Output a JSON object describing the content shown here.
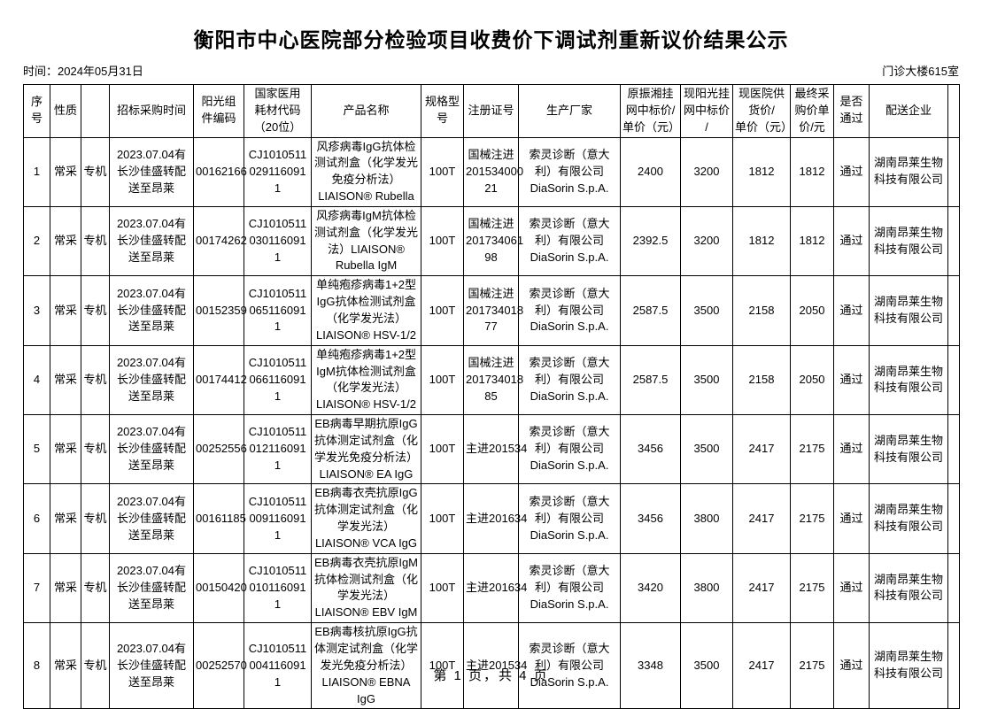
{
  "page": {
    "title": "衡阳市中心医院部分检验项目收费价下调试剂重新议价结果公示",
    "date_label": "时间：2024年05月31日",
    "room_label": "门诊大楼615室",
    "footer": "第 1 页，共 4 页"
  },
  "table": {
    "headers": [
      "序号",
      "性质",
      "",
      "招标采购时间",
      "阳光组\n件编码",
      "国家医用\n耗材代码\n（20位）",
      "产品名称",
      "规格型\n号",
      "注册证号",
      "生产厂家",
      "原振湘挂\n网中标价/\n单价（元）",
      "现阳光挂\n网中标价\n/",
      "现医院供\n货价/\n单价（元）",
      "最终采\n购价单\n价/元",
      "是否\n通过",
      "配送企业",
      ""
    ],
    "rows": [
      [
        "1",
        "常采",
        "专机",
        "2023.07.04有\n长沙佳盛转配\n送至昂莱",
        "00162166",
        "CJ1010511\n029116091\n1",
        "风疹病毒IgG抗体检\n测试剂盒（化学发光\n免疫分析法）\nLIAISON® Rubella",
        "100T",
        "国械注进\n201534000\n21",
        "索灵诊断（意大\n利）有限公司\nDiaSorin S.p.A.",
        "2400",
        "3200",
        "1812",
        "1812",
        "通过",
        "湖南昂莱生物\n科技有限公司",
        ""
      ],
      [
        "2",
        "常采",
        "专机",
        "2023.07.04有\n长沙佳盛转配\n送至昂莱",
        "00174262",
        "CJ1010511\n030116091\n1",
        "风疹病毒IgM抗体检\n测试剂盒（化学发光\n法）LIAISON®\nRubella IgM",
        "100T",
        "国械注进\n201734061\n98",
        "索灵诊断（意大\n利）有限公司\nDiaSorin S.p.A.",
        "2392.5",
        "3200",
        "1812",
        "1812",
        "通过",
        "湖南昂莱生物\n科技有限公司",
        ""
      ],
      [
        "3",
        "常采",
        "专机",
        "2023.07.04有\n长沙佳盛转配\n送至昂莱",
        "00152359",
        "CJ1010511\n065116091\n1",
        "单纯疱疹病毒1+2型\nIgG抗体检测试剂盒\n（化学发光法）\nLIAISON® HSV-1/2",
        "100T",
        "国械注进\n201734018\n77",
        "索灵诊断（意大\n利）有限公司\nDiaSorin S.p.A.",
        "2587.5",
        "3500",
        "2158",
        "2050",
        "通过",
        "湖南昂莱生物\n科技有限公司",
        ""
      ],
      [
        "4",
        "常采",
        "专机",
        "2023.07.04有\n长沙佳盛转配\n送至昂莱",
        "00174412",
        "CJ1010511\n066116091\n1",
        "单纯疱疹病毒1+2型\nIgM抗体检测试剂盒\n（化学发光法）\nLIAISON® HSV-1/2",
        "100T",
        "国械注进\n201734018\n85",
        "索灵诊断（意大\n利）有限公司\nDiaSorin S.p.A.",
        "2587.5",
        "3500",
        "2158",
        "2050",
        "通过",
        "湖南昂莱生物\n科技有限公司",
        ""
      ],
      [
        "5",
        "常采",
        "专机",
        "2023.07.04有\n长沙佳盛转配\n送至昂莱",
        "00252556",
        "CJ1010511\n012116091\n1",
        "EB病毒早期抗原IgG\n抗体测定试剂盒（化\n学发光免疫分析法）\nLIAISON® EA IgG",
        "100T",
        "主进201534",
        "索灵诊断（意大\n利）有限公司\nDiaSorin S.p.A.",
        "3456",
        "3500",
        "2417",
        "2175",
        "通过",
        "湖南昂莱生物\n科技有限公司",
        ""
      ],
      [
        "6",
        "常采",
        "专机",
        "2023.07.04有\n长沙佳盛转配\n送至昂莱",
        "00161185",
        "CJ1010511\n009116091\n1",
        "EB病毒衣壳抗原IgG\n抗体测定试剂盒（化\n学发光法）\nLIAISON® VCA IgG",
        "100T",
        "主进201634",
        "索灵诊断（意大\n利）有限公司\nDiaSorin S.p.A.",
        "3456",
        "3800",
        "2417",
        "2175",
        "通过",
        "湖南昂莱生物\n科技有限公司",
        ""
      ],
      [
        "7",
        "常采",
        "专机",
        "2023.07.04有\n长沙佳盛转配\n送至昂莱",
        "00150420",
        "CJ1010511\n010116091\n1",
        "EB病毒衣壳抗原IgM\n抗体检测试剂盒（化\n学发光法）\nLIAISON® EBV IgM",
        "100T",
        "主进201634",
        "索灵诊断（意大\n利）有限公司\nDiaSorin S.p.A.",
        "3420",
        "3800",
        "2417",
        "2175",
        "通过",
        "湖南昂莱生物\n科技有限公司",
        ""
      ],
      [
        "8",
        "常采",
        "专机",
        "2023.07.04有\n长沙佳盛转配\n送至昂莱",
        "00252570",
        "CJ1010511\n004116091\n1",
        "EB病毒核抗原IgG抗\n体测定试剂盒（化学\n发光免疫分析法）\nLIAISON® EBNA IgG",
        "100T",
        "主进201534",
        "索灵诊断（意大\n利）有限公司\nDiaSorin S.p.A.",
        "3348",
        "3500",
        "2417",
        "2175",
        "通过",
        "湖南昂莱生物\n科技有限公司",
        ""
      ]
    ]
  }
}
